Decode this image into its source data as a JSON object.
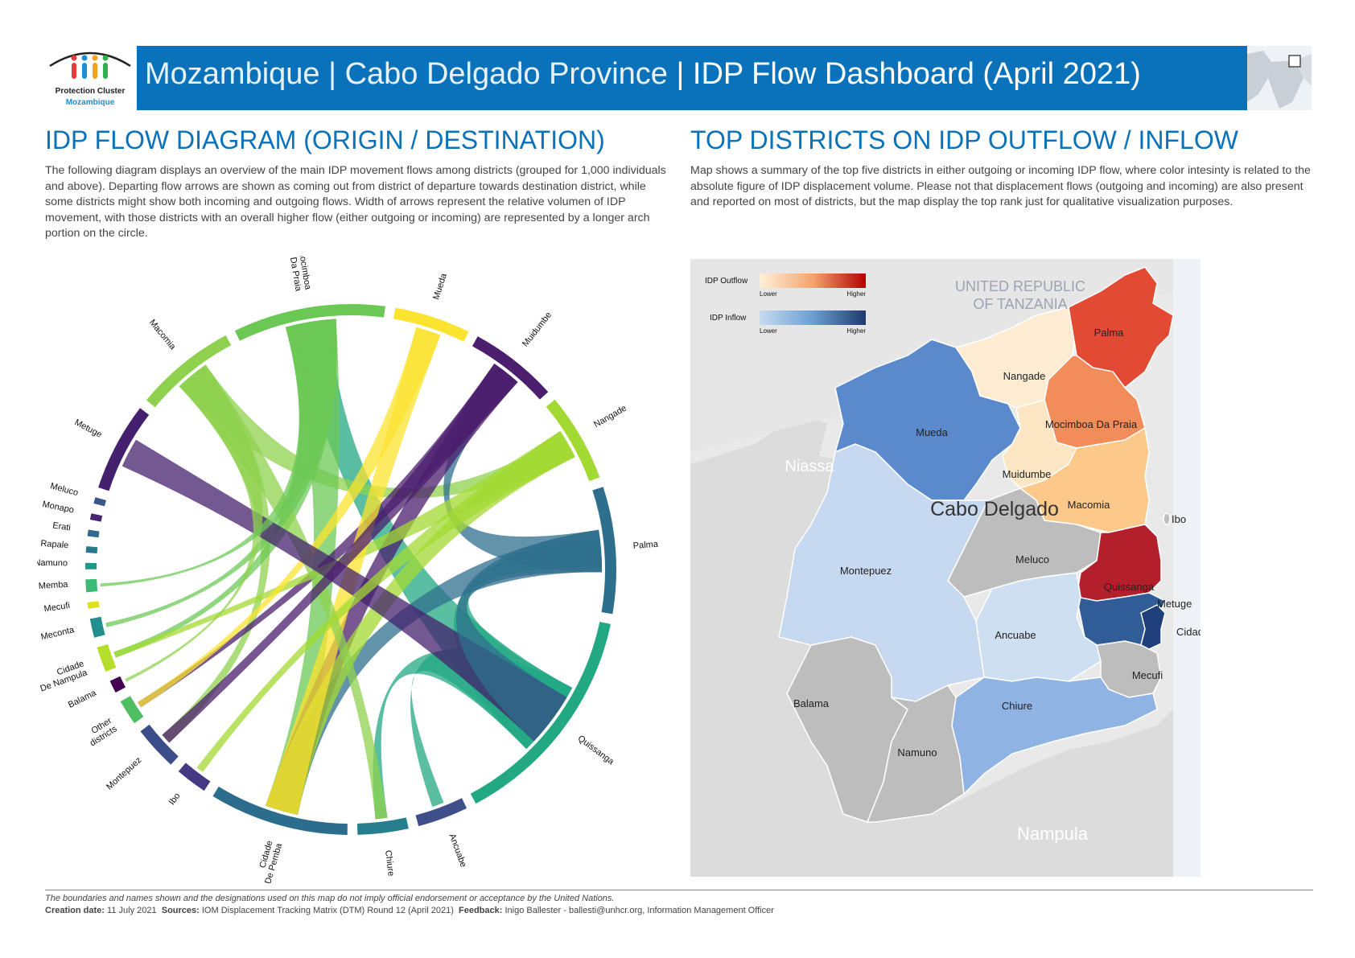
{
  "header": {
    "logo_line1": "Protection Cluster",
    "logo_line2": "Mozambique",
    "title_part1": "Mozambique",
    "title_part2": "Cabo Delgado Province",
    "title_part3": "IDP Flow Dashboard (April 2021)"
  },
  "left": {
    "heading": "IDP FLOW DIAGRAM (ORIGIN / DESTINATION)",
    "description": "The following diagram displays an overview of the main IDP movement flows among districts (grouped for 1,000 individuals and above). Departing flow arrows are shown as coming out from district of departure towards destination district, while some districts might show both incoming and outgoing flows. Width of arrows represent the relative volumen of IDP movement, with those districts with an overall higher flow (either outgoing or incoming) are represented by a longer arch portion on the circle."
  },
  "right": {
    "heading": "TOP DISTRICTS ON IDP OUTFLOW / INFLOW",
    "description": "Map shows a summary of the top five districts in either outgoing or incoming IDP flow, where color intesinty is related to the absolute figure of IDP displacement volume. Please not that displacement flows (outgoing and incoming) are also present and reported on most of districts, but the map display the top rank just for qualitative visualization purposes."
  },
  "chord_districts": [
    {
      "name": "Metuge",
      "color": "#44206e"
    },
    {
      "name": "Macomia",
      "color": "#8fd14f"
    },
    {
      "name": "Mocimboa\nDa Praia",
      "color": "#6cc855"
    },
    {
      "name": "Mueda",
      "color": "#fbe32f"
    },
    {
      "name": "Muidumbe",
      "color": "#4b1e6e"
    },
    {
      "name": "Nangade",
      "color": "#a3d933"
    },
    {
      "name": "Palma",
      "color": "#2f6f8e"
    },
    {
      "name": "Quissanga",
      "color": "#23a884"
    },
    {
      "name": "Ancuabe",
      "color": "#3e4f8a"
    },
    {
      "name": "Chiure",
      "color": "#277f8e"
    },
    {
      "name": "Cidade\nDe Pemba",
      "color": "#2c6c8c"
    },
    {
      "name": "Ibo",
      "color": "#433a83"
    },
    {
      "name": "Montepuez",
      "color": "#3b4e8a"
    },
    {
      "name": "Other\ndistricts",
      "color": "#4dbe62"
    },
    {
      "name": "Balama",
      "color": "#440154"
    },
    {
      "name": "Cidade\nDe Nampula",
      "color": "#b5de2b"
    },
    {
      "name": "Meconta",
      "color": "#21908d"
    },
    {
      "name": "Mecufi",
      "color": "#dde318"
    },
    {
      "name": "Memba",
      "color": "#3cbb75"
    },
    {
      "name": "Namuno",
      "color": "#1f988b"
    },
    {
      "name": "Rapale",
      "color": "#2a788e"
    },
    {
      "name": "Erati",
      "color": "#31688e"
    },
    {
      "name": "Monapo",
      "color": "#482475"
    },
    {
      "name": "Meluco",
      "color": "#3a548c"
    }
  ],
  "map": {
    "legend": {
      "outflow_label": "IDP Outflow",
      "inflow_label": "IDP Inflow",
      "lower": "Lower",
      "higher": "Higher"
    },
    "region_labels": {
      "tanzania": "UNITED REPUBLIC\nOF TANZANIA",
      "niassa": "Niassa",
      "nampula": "Nampula",
      "province": "Cabo Delgado"
    },
    "districts": [
      {
        "name": "Palma",
        "color": "#e34a33"
      },
      {
        "name": "Nangade",
        "color": "#fdecd2"
      },
      {
        "name": "Mocimboa Da Praia",
        "color": "#f28c5a"
      },
      {
        "name": "Mueda",
        "color": "#5a8acb"
      },
      {
        "name": "Muidumbe",
        "color": "#fde6c4"
      },
      {
        "name": "Macomia",
        "color": "#fcc98a"
      },
      {
        "name": "Ibo",
        "color": "#bfbfbf"
      },
      {
        "name": "Meluco",
        "color": "#bdbdbd"
      },
      {
        "name": "Montepuez",
        "color": "#c6d9f0"
      },
      {
        "name": "Quissanga",
        "color": "#b31f2a"
      },
      {
        "name": "Metuge",
        "color": "#305d97"
      },
      {
        "name": "Cidade De Pemba",
        "color": "#1f3f7a"
      },
      {
        "name": "Ancuabe",
        "color": "#cfdff2"
      },
      {
        "name": "Mecufi",
        "color": "#bdbdbd"
      },
      {
        "name": "Balama",
        "color": "#bdbdbd"
      },
      {
        "name": "Chiure",
        "color": "#8fb3e2"
      },
      {
        "name": "Namuno",
        "color": "#bdbdbd"
      }
    ]
  },
  "footer": {
    "disclaimer": "The boundaries and names shown and the designations used on this map do not imply official endorsement or acceptance by the United Nations.",
    "creation_label": "Creation date:",
    "creation_value": "11 July 2021",
    "sources_label": "Sources:",
    "sources_value": "IOM Displacement Tracking Matrix (DTM) Round 12 (April 2021)",
    "feedback_label": "Feedback:",
    "feedback_value": "Inigo Ballester - ballesti@unhcr.org, Information Management Officer"
  }
}
